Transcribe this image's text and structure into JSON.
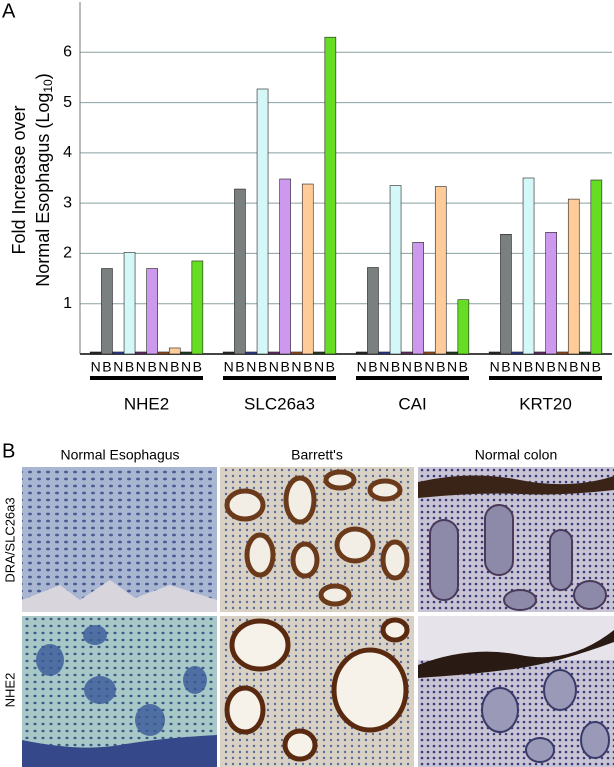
{
  "chart_data": {
    "type": "bar",
    "panel_label": "A",
    "y_label": {
      "line1": "Fold Increase over",
      "line2": "Normal Esophagus (Log",
      "sub": "10",
      "end": ")"
    },
    "categories": [
      "NHE2",
      "SLC26a3",
      "CAI",
      "KRT20"
    ],
    "subcategories": [
      "N",
      "B",
      "N",
      "B",
      "N",
      "B",
      "N",
      "B",
      "N",
      "B"
    ],
    "series": [
      {
        "color": "#222222",
        "values": [
          0.04,
          0.04,
          0.04,
          0.04
        ]
      },
      {
        "color": "#7a7f7f",
        "values": [
          1.7,
          3.28,
          1.72,
          2.38
        ]
      },
      {
        "color": "#2a3a9a",
        "values": [
          0.04,
          0.04,
          0.04,
          0.04
        ]
      },
      {
        "color": "#d4f7f7",
        "values": [
          2.02,
          5.27,
          3.35,
          3.5
        ]
      },
      {
        "color": "#6a2a6a",
        "values": [
          0.04,
          0.04,
          0.04,
          0.04
        ]
      },
      {
        "color": "#cc99ee",
        "values": [
          1.7,
          3.48,
          2.22,
          2.42
        ]
      },
      {
        "color": "#a0501e",
        "values": [
          0.04,
          0.04,
          0.04,
          0.04
        ]
      },
      {
        "color": "#ffcc99",
        "values": [
          0.12,
          3.38,
          3.33,
          3.08
        ]
      },
      {
        "color": "#1e3a1e",
        "values": [
          0.04,
          0.04,
          0.04,
          0.04
        ]
      },
      {
        "color": "#66dd22",
        "values": [
          1.85,
          6.3,
          1.08,
          3.46
        ]
      }
    ],
    "ylim": [
      0,
      7
    ],
    "yticks": [
      1,
      2,
      3,
      4,
      5,
      6
    ],
    "grid": true
  },
  "panel_b": {
    "panel_label": "B",
    "columns": [
      "Normal Esophagus",
      "Barrett's",
      "Normal colon"
    ],
    "rows": [
      "DRA/SLC26a3",
      "NHE2"
    ]
  }
}
